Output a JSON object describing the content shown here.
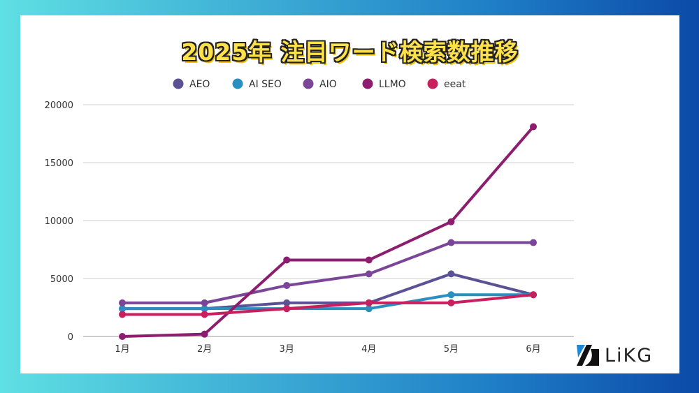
{
  "chart_data": {
    "type": "line",
    "title": "2025年 注目ワード検索数推移",
    "xlabel": "",
    "ylabel": "",
    "categories": [
      "1月",
      "2月",
      "3月",
      "4月",
      "5月",
      "6月"
    ],
    "ylim": [
      0,
      20000
    ],
    "yticks": [
      "0",
      "5000",
      "10000",
      "15000",
      "20000"
    ],
    "ytick_values": [
      0,
      5000,
      10000,
      15000,
      20000
    ],
    "grid": true,
    "legend_position": "top",
    "series": [
      {
        "name": "AEO",
        "color": "#5b5296",
        "values": [
          2400,
          2400,
          2900,
          2900,
          5400,
          3600
        ]
      },
      {
        "name": "AI SEO",
        "color": "#2a8fc0",
        "values": [
          2400,
          2400,
          2400,
          2400,
          3600,
          3600
        ]
      },
      {
        "name": "AIO",
        "color": "#7b4598",
        "values": [
          2900,
          2900,
          4400,
          5400,
          8100,
          8100
        ]
      },
      {
        "name": "LLMO",
        "color": "#8c1d6f",
        "values": [
          0,
          200,
          6600,
          6600,
          9900,
          18100
        ]
      },
      {
        "name": "eeat",
        "color": "#c8205e",
        "values": [
          1900,
          1900,
          2400,
          2900,
          2900,
          3600
        ]
      }
    ]
  },
  "logo": {
    "text": "LiKG"
  }
}
